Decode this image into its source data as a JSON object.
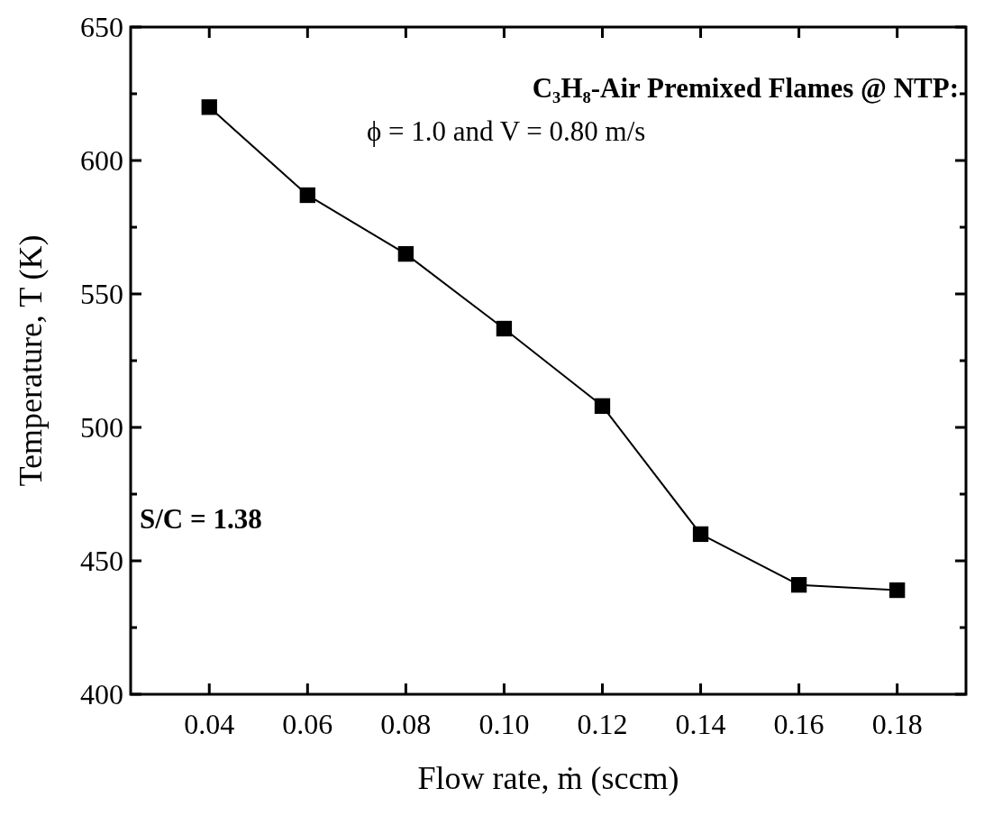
{
  "chart_data": {
    "type": "line",
    "xlabel": "Flow rate, ṁ (sccm)",
    "ylabel": "Temperature, T (K)",
    "x": [
      0.04,
      0.06,
      0.08,
      0.1,
      0.12,
      0.14,
      0.16,
      0.18
    ],
    "series": [
      {
        "color": "#000000",
        "values": [
          620,
          587,
          565,
          537,
          508,
          460,
          441,
          439
        ]
      }
    ],
    "xlim": [
      0.024,
      0.194
    ],
    "xticks": [
      {
        "value": 0.04,
        "label": "0.04"
      },
      {
        "value": 0.06,
        "label": "0.06"
      },
      {
        "value": 0.08,
        "label": "0.08"
      },
      {
        "value": 0.1,
        "label": "0.10"
      },
      {
        "value": 0.12,
        "label": "0.12"
      },
      {
        "value": 0.14,
        "label": "0.14"
      },
      {
        "value": 0.16,
        "label": "0.16"
      },
      {
        "value": 0.18,
        "label": "0.18"
      }
    ],
    "ylim": [
      400,
      650
    ],
    "yticks": [
      400,
      {
        "value": 425,
        "label": null
      },
      450,
      {
        "value": 475,
        "label": null
      },
      500,
      {
        "value": 525,
        "label": null
      },
      550,
      {
        "value": 575,
        "label": null
      },
      600,
      {
        "value": 625,
        "label": null
      },
      650
    ],
    "annotations": [
      "C₃H₈-Air Premixed Flames @ NTP:",
      "ϕ = 1.0 and V = 0.80 m/s",
      "S/C = 1.38"
    ],
    "marker": "square",
    "line_style": "solid"
  }
}
